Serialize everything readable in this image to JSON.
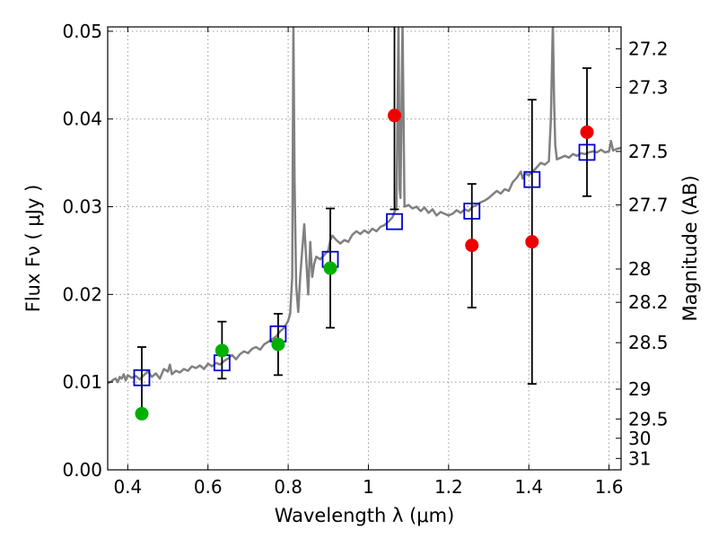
{
  "chart_data": {
    "type": "scatter",
    "xlabel": "Wavelength  λ (μm)",
    "ylabel": "Flux  Fν  ( μJy )",
    "ylabel_right": "Magnitude (AB)",
    "xlim": [
      0.35,
      1.63
    ],
    "ylim": [
      0.0,
      0.0505
    ],
    "grid": true,
    "x_ticks": [
      0.4,
      0.6,
      0.8,
      1.0,
      1.2,
      1.4,
      1.6
    ],
    "x_tick_labels": [
      "0.4",
      "0.6",
      "0.8",
      "1",
      "1.2",
      "1.4",
      "1.6"
    ],
    "y_ticks": [
      0.0,
      0.01,
      0.02,
      0.03,
      0.04,
      0.05
    ],
    "y_tick_labels": [
      "0.00",
      "0.01",
      "0.02",
      "0.03",
      "0.04",
      "0.05"
    ],
    "right_ticks": [
      {
        "label": "27.2",
        "flux": 0.048
      },
      {
        "label": "27.3",
        "flux": 0.0436
      },
      {
        "label": "27.5",
        "flux": 0.0363
      },
      {
        "label": "27.7",
        "flux": 0.0302
      },
      {
        "label": "28",
        "flux": 0.0229
      },
      {
        "label": "28.2",
        "flux": 0.0191
      },
      {
        "label": "28.5",
        "flux": 0.0145
      },
      {
        "label": "29",
        "flux": 0.0092
      },
      {
        "label": "29.5",
        "flux": 0.0058
      },
      {
        "label": "30",
        "flux": 0.0036
      },
      {
        "label": "31",
        "flux": 0.0013
      }
    ],
    "colors": {
      "model": "#808080",
      "model_band": "#0000cc",
      "detection": "#00b000",
      "nir_detection": "#ee0000",
      "errorbar": "#000000",
      "grid": "#999999"
    },
    "series": [
      {
        "kind": "model_spectrum",
        "points": [
          [
            0.35,
            0.0099
          ],
          [
            0.355,
            0.01
          ],
          [
            0.36,
            0.0101
          ],
          [
            0.365,
            0.0103
          ],
          [
            0.37,
            0.0104
          ],
          [
            0.375,
            0.01
          ],
          [
            0.38,
            0.0106
          ],
          [
            0.385,
            0.0104
          ],
          [
            0.39,
            0.0109
          ],
          [
            0.395,
            0.0102
          ],
          [
            0.4,
            0.0108
          ],
          [
            0.41,
            0.0105
          ],
          [
            0.42,
            0.0107
          ],
          [
            0.43,
            0.0103
          ],
          [
            0.44,
            0.0108
          ],
          [
            0.45,
            0.0112
          ],
          [
            0.46,
            0.0106
          ],
          [
            0.47,
            0.011
          ],
          [
            0.48,
            0.0104
          ],
          [
            0.49,
            0.0115
          ],
          [
            0.5,
            0.0112
          ],
          [
            0.505,
            0.012
          ],
          [
            0.51,
            0.0109
          ],
          [
            0.52,
            0.0113
          ],
          [
            0.53,
            0.0111
          ],
          [
            0.54,
            0.0115
          ],
          [
            0.55,
            0.0113
          ],
          [
            0.56,
            0.0118
          ],
          [
            0.57,
            0.0116
          ],
          [
            0.58,
            0.0119
          ],
          [
            0.59,
            0.0115
          ],
          [
            0.6,
            0.0121
          ],
          [
            0.61,
            0.0118
          ],
          [
            0.62,
            0.0122
          ],
          [
            0.63,
            0.012
          ],
          [
            0.64,
            0.0124
          ],
          [
            0.65,
            0.0127
          ],
          [
            0.66,
            0.0131
          ],
          [
            0.67,
            0.0126
          ],
          [
            0.68,
            0.0132
          ],
          [
            0.69,
            0.0135
          ],
          [
            0.7,
            0.0133
          ],
          [
            0.71,
            0.0138
          ],
          [
            0.72,
            0.014
          ],
          [
            0.73,
            0.0137
          ],
          [
            0.74,
            0.0143
          ],
          [
            0.75,
            0.0146
          ],
          [
            0.76,
            0.0149
          ],
          [
            0.77,
            0.0152
          ],
          [
            0.78,
            0.0158
          ],
          [
            0.79,
            0.0162
          ],
          [
            0.8,
            0.017
          ],
          [
            0.805,
            0.0178
          ],
          [
            0.81,
            0.022
          ],
          [
            0.813,
            0.051
          ],
          [
            0.816,
            0.033
          ],
          [
            0.82,
            0.021
          ],
          [
            0.825,
            0.018
          ],
          [
            0.83,
            0.022
          ],
          [
            0.835,
            0.025
          ],
          [
            0.84,
            0.028
          ],
          [
            0.845,
            0.024
          ],
          [
            0.85,
            0.02
          ],
          [
            0.855,
            0.026
          ],
          [
            0.86,
            0.022
          ],
          [
            0.865,
            0.0235
          ],
          [
            0.87,
            0.0243
          ],
          [
            0.88,
            0.024
          ],
          [
            0.89,
            0.0245
          ],
          [
            0.9,
            0.025
          ],
          [
            0.905,
            0.0262
          ],
          [
            0.91,
            0.0267
          ],
          [
            0.92,
            0.0262
          ],
          [
            0.93,
            0.0258
          ],
          [
            0.94,
            0.0262
          ],
          [
            0.95,
            0.026
          ],
          [
            0.96,
            0.0268
          ],
          [
            0.97,
            0.0272
          ],
          [
            0.98,
            0.0269
          ],
          [
            0.99,
            0.0273
          ],
          [
            1.0,
            0.027
          ],
          [
            1.01,
            0.0275
          ],
          [
            1.02,
            0.0272
          ],
          [
            1.03,
            0.0277
          ],
          [
            1.04,
            0.0279
          ],
          [
            1.05,
            0.0283
          ],
          [
            1.06,
            0.0288
          ],
          [
            1.07,
            0.03
          ],
          [
            1.075,
            0.051
          ],
          [
            1.078,
            0.032
          ],
          [
            1.08,
            0.031
          ],
          [
            1.085,
            0.051
          ],
          [
            1.09,
            0.03
          ],
          [
            1.1,
            0.0302
          ],
          [
            1.11,
            0.0298
          ],
          [
            1.12,
            0.03
          ],
          [
            1.13,
            0.0295
          ],
          [
            1.14,
            0.0299
          ],
          [
            1.15,
            0.0293
          ],
          [
            1.16,
            0.0297
          ],
          [
            1.17,
            0.029
          ],
          [
            1.18,
            0.0294
          ],
          [
            1.19,
            0.0292
          ],
          [
            1.2,
            0.029
          ],
          [
            1.21,
            0.0292
          ],
          [
            1.22,
            0.0296
          ],
          [
            1.23,
            0.0293
          ],
          [
            1.24,
            0.0297
          ],
          [
            1.25,
            0.0295
          ],
          [
            1.26,
            0.03
          ],
          [
            1.27,
            0.0302
          ],
          [
            1.28,
            0.0305
          ],
          [
            1.29,
            0.0307
          ],
          [
            1.3,
            0.031
          ],
          [
            1.31,
            0.0314
          ],
          [
            1.32,
            0.0318
          ],
          [
            1.33,
            0.0315
          ],
          [
            1.34,
            0.032
          ],
          [
            1.35,
            0.0318
          ],
          [
            1.36,
            0.0328
          ],
          [
            1.37,
            0.0333
          ],
          [
            1.38,
            0.034
          ],
          [
            1.385,
            0.0332
          ],
          [
            1.39,
            0.0338
          ],
          [
            1.4,
            0.0336
          ],
          [
            1.41,
            0.034
          ],
          [
            1.42,
            0.0345
          ],
          [
            1.43,
            0.035
          ],
          [
            1.44,
            0.0348
          ],
          [
            1.45,
            0.0352
          ],
          [
            1.455,
            0.04
          ],
          [
            1.46,
            0.051
          ],
          [
            1.463,
            0.042
          ],
          [
            1.466,
            0.037
          ],
          [
            1.47,
            0.0354
          ],
          [
            1.48,
            0.0356
          ],
          [
            1.49,
            0.0358
          ],
          [
            1.5,
            0.0356
          ],
          [
            1.51,
            0.036
          ],
          [
            1.52,
            0.0358
          ],
          [
            1.53,
            0.0361
          ],
          [
            1.54,
            0.036
          ],
          [
            1.55,
            0.0362
          ],
          [
            1.56,
            0.0363
          ],
          [
            1.57,
            0.0362
          ],
          [
            1.58,
            0.0365
          ],
          [
            1.59,
            0.0362
          ],
          [
            1.6,
            0.0363
          ],
          [
            1.605,
            0.0375
          ],
          [
            1.61,
            0.0364
          ],
          [
            1.62,
            0.0366
          ],
          [
            1.63,
            0.0367
          ]
        ]
      },
      {
        "kind": "model_band_flux",
        "points": [
          {
            "x": 0.435,
            "y": 0.0105
          },
          {
            "x": 0.635,
            "y": 0.0122
          },
          {
            "x": 0.775,
            "y": 0.0155
          },
          {
            "x": 0.905,
            "y": 0.024
          },
          {
            "x": 1.065,
            "y": 0.0283
          },
          {
            "x": 1.258,
            "y": 0.0295
          },
          {
            "x": 1.408,
            "y": 0.0331
          },
          {
            "x": 1.545,
            "y": 0.0362
          }
        ]
      },
      {
        "kind": "optical_detections",
        "points": [
          {
            "x": 0.435,
            "y": 0.0064,
            "yerr_low": 0.0064,
            "yerr_high": 0.014
          },
          {
            "x": 0.635,
            "y": 0.0136,
            "yerr_low": 0.0104,
            "yerr_high": 0.0169
          },
          {
            "x": 0.775,
            "y": 0.0143,
            "yerr_low": 0.0108,
            "yerr_high": 0.0178
          },
          {
            "x": 0.905,
            "y": 0.023,
            "yerr_low": 0.0162,
            "yerr_high": 0.0298
          }
        ]
      },
      {
        "kind": "nir_detections",
        "points": [
          {
            "x": 1.065,
            "y": 0.0404,
            "yerr_low": 0.0297,
            "yerr_high": 0.051
          },
          {
            "x": 1.258,
            "y": 0.0256,
            "yerr_low": 0.0185,
            "yerr_high": 0.0326
          },
          {
            "x": 1.408,
            "y": 0.026,
            "yerr_low": 0.0098,
            "yerr_high": 0.0422
          },
          {
            "x": 1.545,
            "y": 0.0385,
            "yerr_low": 0.0312,
            "yerr_high": 0.0458
          }
        ]
      }
    ]
  }
}
